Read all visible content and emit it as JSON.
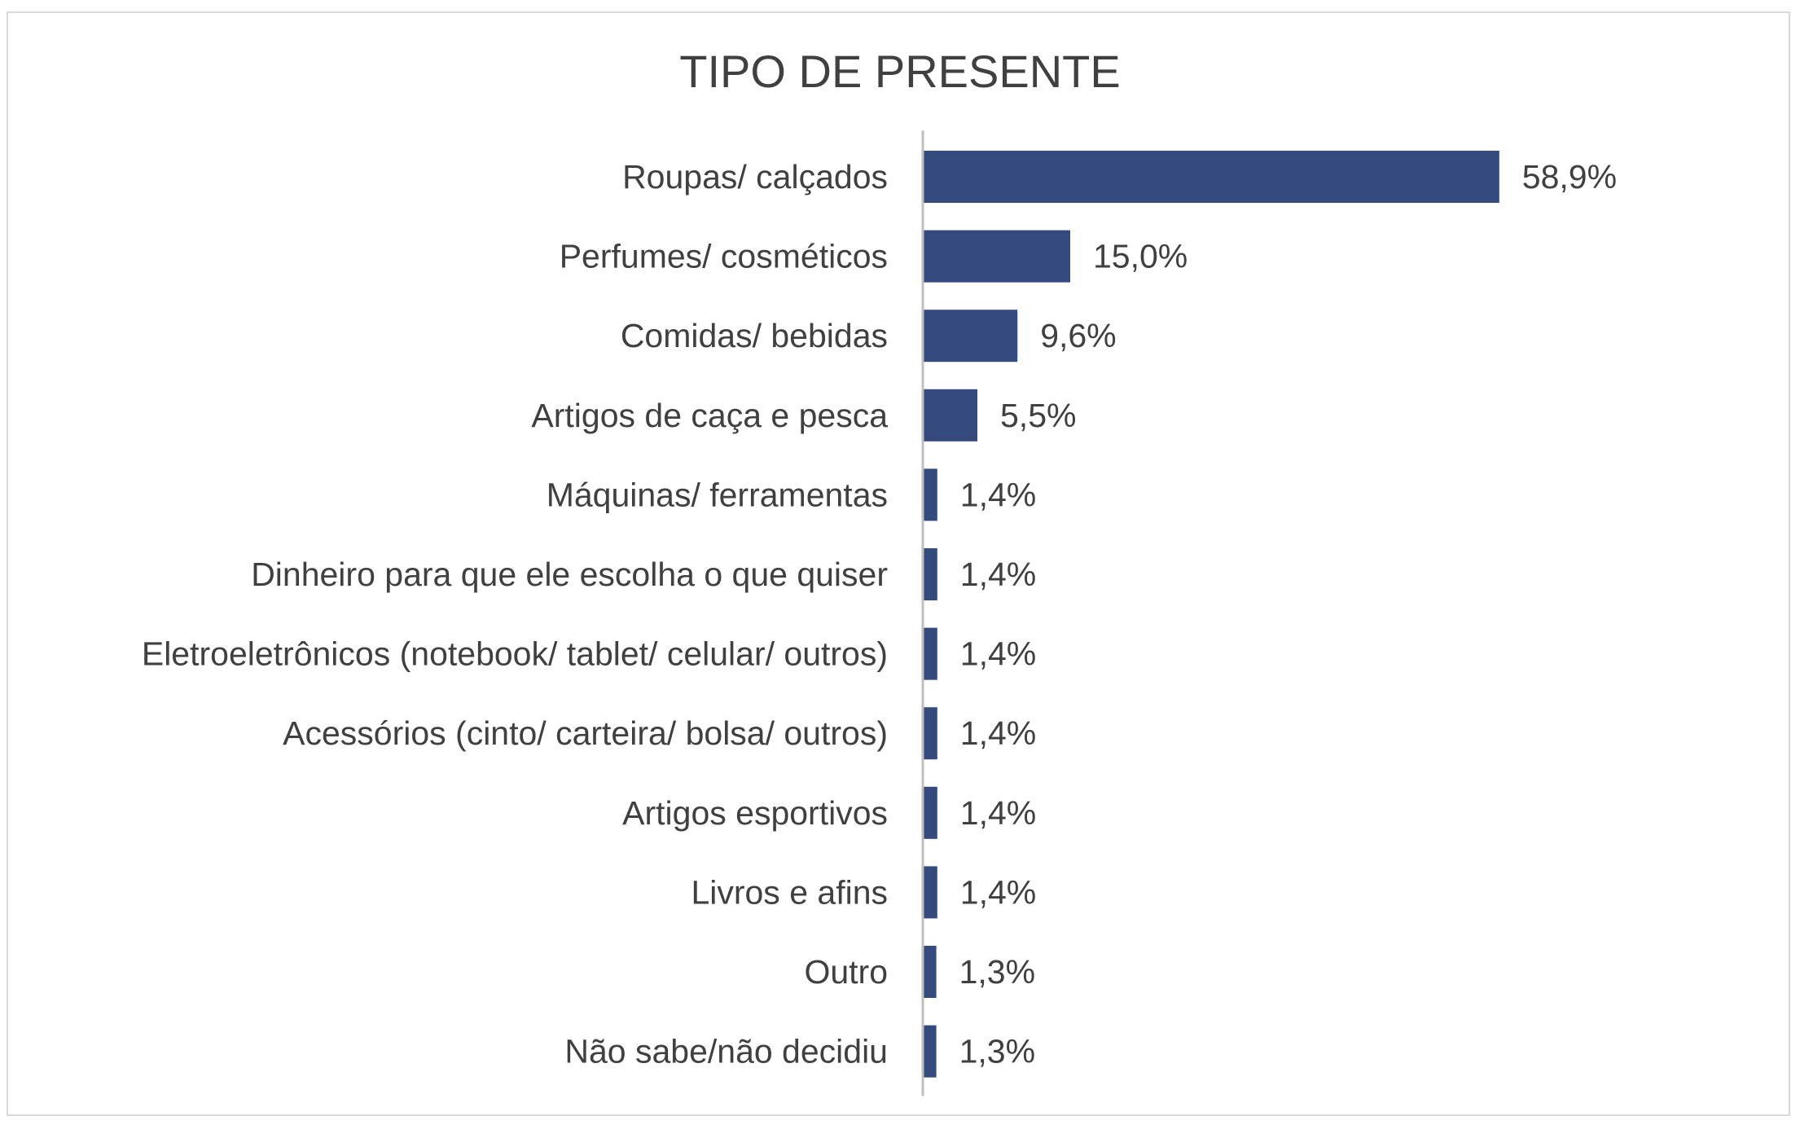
{
  "chart_data": {
    "type": "bar",
    "orientation": "horizontal",
    "title": "TIPO DE PRESENTE",
    "categories": [
      "Roupas/ calçados",
      "Perfumes/ cosméticos",
      "Comidas/ bebidas",
      "Artigos de caça e pesca",
      "Máquinas/ ferramentas",
      "Dinheiro para que ele escolha o que quiser",
      "Eletroeletrônicos (notebook/ tablet/ celular/ outros)",
      "Acessórios (cinto/ carteira/ bolsa/ outros)",
      "Artigos esportivos",
      "Livros e afins",
      "Outro",
      "Não sabe/não decidiu"
    ],
    "values": [
      58.9,
      15.0,
      9.6,
      5.5,
      1.4,
      1.4,
      1.4,
      1.4,
      1.4,
      1.4,
      1.3,
      1.3
    ],
    "value_labels": [
      "58,9%",
      "15,0%",
      "9,6%",
      "5,5%",
      "1,4%",
      "1,4%",
      "1,4%",
      "1,4%",
      "1,4%",
      "1,4%",
      "1,3%",
      "1,3%"
    ],
    "xlim": [
      0,
      60
    ],
    "grid": false,
    "legend": "none",
    "bar_color": "#354a7e",
    "text_color": "#404040",
    "axis_color": "#bfbfbf"
  }
}
